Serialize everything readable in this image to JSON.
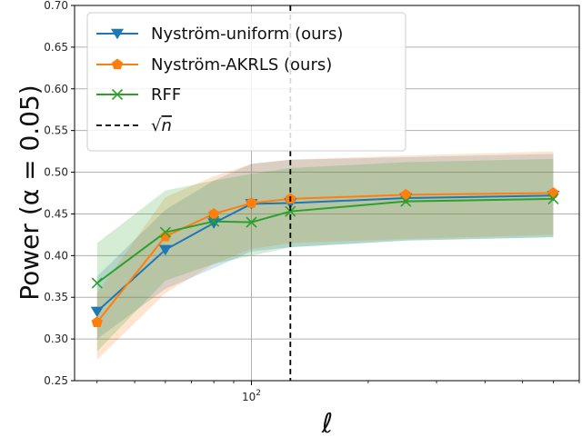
{
  "chart_data": {
    "type": "line",
    "xscale": "log",
    "x": [
      40,
      60,
      80,
      100,
      126,
      250,
      600
    ],
    "ylim": [
      0.25,
      0.7
    ],
    "xlim": [
      35,
      700
    ],
    "ylabel": "Power (α = 0.05)",
    "xlabel": "ℓ",
    "yticks": [
      "0.25",
      "0.30",
      "0.35",
      "0.40",
      "0.45",
      "0.50",
      "0.55",
      "0.60",
      "0.65",
      "0.70"
    ],
    "xtick_label": {
      "base": "10",
      "exp": "2"
    },
    "grid": true,
    "legend_position": "top-left",
    "vline": {
      "x": 126,
      "label_radical": "√",
      "label_var": "n",
      "color": "#000000",
      "style": "dashed"
    },
    "series": [
      {
        "name": "Nyström-uniform (ours)",
        "color": "#1f77b4",
        "marker": "triangle-down",
        "values": [
          0.333,
          0.407,
          0.439,
          0.462,
          0.463,
          0.469,
          0.472
        ],
        "band_lower": [
          0.3,
          0.36,
          0.385,
          0.405,
          0.41,
          0.418,
          0.422
        ],
        "band_upper": [
          0.375,
          0.455,
          0.49,
          0.51,
          0.515,
          0.518,
          0.522
        ]
      },
      {
        "name": "Nyström-AKRLS (ours)",
        "color": "#ff7f0e",
        "marker": "pentagon",
        "values": [
          0.32,
          0.423,
          0.45,
          0.463,
          0.468,
          0.473,
          0.475
        ],
        "band_lower": [
          0.275,
          0.355,
          0.39,
          0.408,
          0.415,
          0.42,
          0.425
        ],
        "band_upper": [
          0.355,
          0.47,
          0.495,
          0.51,
          0.515,
          0.52,
          0.525
        ]
      },
      {
        "name": "RFF",
        "color": "#2ca02c",
        "marker": "x",
        "values": [
          0.367,
          0.428,
          0.441,
          0.44,
          0.453,
          0.465,
          0.468
        ],
        "band_lower": [
          0.285,
          0.37,
          0.39,
          0.4,
          0.41,
          0.418,
          0.422
        ],
        "band_upper": [
          0.415,
          0.478,
          0.49,
          0.498,
          0.505,
          0.512,
          0.516
        ]
      }
    ]
  }
}
